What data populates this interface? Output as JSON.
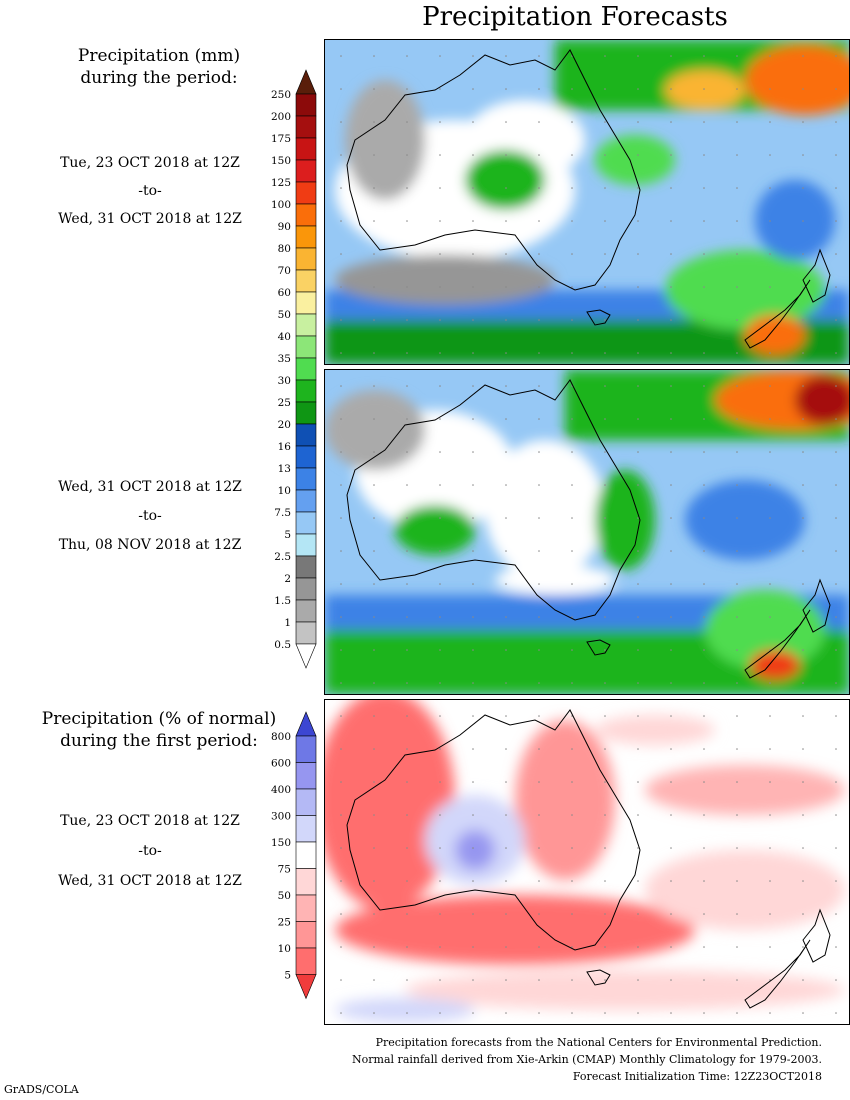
{
  "title": "Precipitation Forecasts",
  "left_labels": {
    "mm_heading_line1": "Precipitation (mm)",
    "mm_heading_line2": "during the period:",
    "period1": {
      "start": "Tue, 23 OCT 2018 at 12Z",
      "to": "-to-",
      "end": "Wed, 31 OCT 2018 at 12Z"
    },
    "period2": {
      "start": "Wed, 31 OCT 2018 at 12Z",
      "to": "-to-",
      "end": "Thu, 08 NOV 2018 at 12Z"
    },
    "pct_heading_line1": "Precipitation (% of normal)",
    "pct_heading_line2": "during the first period:",
    "period3": {
      "start": "Tue, 23 OCT 2018 at 12Z",
      "to": "-to-",
      "end": "Wed, 31 OCT 2018 at 12Z"
    }
  },
  "mm_scale": {
    "ticks": [
      "250",
      "200",
      "175",
      "150",
      "125",
      "100",
      "90",
      "80",
      "70",
      "60",
      "50",
      "40",
      "35",
      "30",
      "25",
      "20",
      "16",
      "13",
      "10",
      "7.5",
      "5",
      "2.5",
      "2",
      "1.5",
      "1",
      "0.5"
    ],
    "colors": [
      "#5a1e0a",
      "#8c0a0a",
      "#a50f0f",
      "#c81414",
      "#dc1e1e",
      "#f03c14",
      "#fa6e0a",
      "#fa960a",
      "#fab432",
      "#fad264",
      "#faf0a0",
      "#c8f0a0",
      "#8ce678",
      "#50dc50",
      "#1eb41e",
      "#0f9614",
      "#0f50b4",
      "#1e64d2",
      "#3c82e6",
      "#64a0f0",
      "#96c8f5",
      "#b4e6f5",
      "#787878",
      "#969696",
      "#aaaaaa",
      "#c3c3c3",
      "#ffffff"
    ]
  },
  "pct_scale": {
    "ticks": [
      "800",
      "600",
      "400",
      "300",
      "150",
      "75",
      "50",
      "25",
      "10",
      "5"
    ],
    "colors": [
      "#3c46d2",
      "#6e78e6",
      "#9696f0",
      "#b4b9f5",
      "#d2d7fa",
      "#ffffff",
      "#ffd7d7",
      "#ffb4b4",
      "#ff9696",
      "#ff6e6e",
      "#f03c3c"
    ]
  },
  "footer": {
    "line1": "Precipitation forecasts from the National Centers for Environmental Prediction.",
    "line2": "Normal rainfall derived from Xie-Arkin (CMAP) Monthly Climatology for 1979-2003.",
    "line3": "Forecast Initialization Time: 12Z23OCT2018"
  },
  "credit": "GrADS/COLA"
}
